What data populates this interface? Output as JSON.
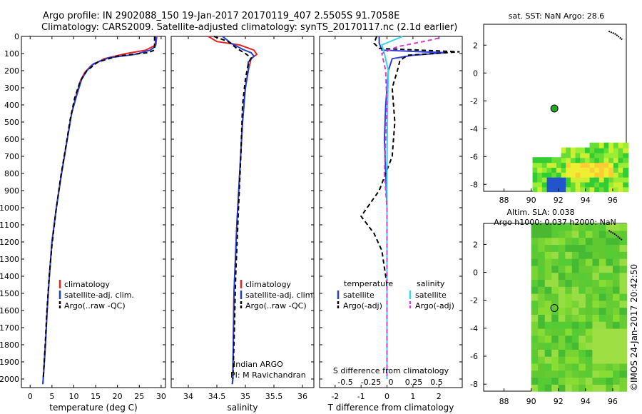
{
  "title_line1": "Argo profile: IN 2902088_150 19-Jan-2017 20170119_407 2.5505S 91.7058E",
  "title_line2": "Climatology: CARS2009. Satellite-adjusted climatology: synTS_20170117.nc (2.1d earlier)",
  "colors": {
    "climatology": "#e8251f",
    "satellite": "#1f3fd6",
    "argo": "#000000",
    "sat_t": "#2b3fe0",
    "sat_s": "#35d6e6",
    "argo_s": "#d23fd2",
    "marker": "#22aa22"
  },
  "depth_ticks": [
    "0",
    "100",
    "200",
    "300",
    "400",
    "500",
    "600",
    "700",
    "800",
    "900",
    "1000",
    "1100",
    "1200",
    "1300",
    "1400",
    "1500",
    "1600",
    "1700",
    "1800",
    "1900",
    "2000"
  ],
  "chart_data": [
    {
      "type": "line",
      "name": "temperature-panel",
      "xlabel": "temperature (deg C)",
      "ylabel": "depth",
      "xlim": [
        -2,
        31
      ],
      "ylim": [
        2050,
        0
      ],
      "xticks": [
        "0",
        "5",
        "10",
        "15",
        "20",
        "25",
        "30"
      ],
      "xtick_values": [
        0,
        5,
        10,
        15,
        20,
        25,
        30
      ],
      "legend": [
        "climatology",
        "satellite-adj. clim.",
        "Argo(..raw -QC)"
      ],
      "series": [
        {
          "name": "climatology",
          "color": "#e8251f",
          "dash": "",
          "points": [
            [
              29.0,
              0
            ],
            [
              28.8,
              50
            ],
            [
              26.5,
              80
            ],
            [
              22,
              100
            ],
            [
              17,
              130
            ],
            [
              14,
              170
            ],
            [
              12.5,
              210
            ],
            [
              11.5,
              260
            ],
            [
              10.5,
              350
            ],
            [
              9.5,
              450
            ],
            [
              8.5,
              600
            ],
            [
              7.2,
              800
            ],
            [
              6.0,
              1000
            ],
            [
              5.0,
              1200
            ],
            [
              4.4,
              1400
            ],
            [
              3.9,
              1600
            ],
            [
              3.5,
              1800
            ],
            [
              3.0,
              2000
            ],
            [
              2.9,
              2030
            ]
          ]
        },
        {
          "name": "satellite-adj. clim.",
          "color": "#1f3fd6",
          "dash": "",
          "points": [
            [
              28.8,
              0
            ],
            [
              28.6,
              60
            ],
            [
              27.5,
              80
            ],
            [
              24,
              105
            ],
            [
              18,
              125
            ],
            [
              14.5,
              160
            ],
            [
              13,
              200
            ],
            [
              11.8,
              250
            ],
            [
              10.6,
              350
            ],
            [
              9.5,
              450
            ],
            [
              8.5,
              600
            ],
            [
              7.2,
              800
            ],
            [
              6.0,
              1000
            ],
            [
              5.0,
              1200
            ],
            [
              4.4,
              1400
            ],
            [
              3.9,
              1600
            ],
            [
              3.5,
              1800
            ],
            [
              3.0,
              2000
            ],
            [
              2.9,
              2030
            ]
          ]
        },
        {
          "name": "Argo(..raw -QC)",
          "color": "#000000",
          "dash": "6,4",
          "points": [
            [
              28.5,
              0
            ],
            [
              28.5,
              80
            ],
            [
              27,
              95
            ],
            [
              20,
              115
            ],
            [
              15.5,
              150
            ],
            [
              13,
              200
            ],
            [
              11.5,
              260
            ],
            [
              10.2,
              360
            ],
            [
              9.2,
              480
            ],
            [
              8.2,
              640
            ],
            [
              7.0,
              820
            ],
            [
              5.9,
              1020
            ],
            [
              5.0,
              1220
            ],
            [
              4.3,
              1420
            ],
            [
              3.8,
              1620
            ],
            [
              3.4,
              1820
            ],
            [
              3.0,
              2000
            ]
          ]
        }
      ]
    },
    {
      "type": "line",
      "name": "salinity-panel",
      "xlabel": "salinity",
      "ylabel": "depth",
      "xlim": [
        33.7,
        36.2
      ],
      "ylim": [
        2050,
        0
      ],
      "xticks": [
        "34",
        "34.5",
        "35",
        "35.5",
        "36"
      ],
      "xtick_values": [
        34,
        34.5,
        35,
        35.5,
        36
      ],
      "legend": [
        "climatology",
        "satellite-adj. clim.",
        "Argo(..raw -QC)"
      ],
      "annotation": [
        "Indian ARGO",
        "PI: M Ravichandran"
      ],
      "series": [
        {
          "name": "climatology",
          "color": "#e8251f",
          "dash": "",
          "points": [
            [
              34.35,
              0
            ],
            [
              34.5,
              30
            ],
            [
              34.9,
              50
            ],
            [
              35.15,
              80
            ],
            [
              35.2,
              105
            ],
            [
              35.1,
              130
            ],
            [
              35.05,
              200
            ],
            [
              35.0,
              300
            ],
            [
              34.95,
              500
            ],
            [
              34.9,
              800
            ],
            [
              34.85,
              1100
            ],
            [
              34.8,
              1500
            ],
            [
              34.78,
              2000
            ],
            [
              34.77,
              2030
            ]
          ]
        },
        {
          "name": "satellite-adj. clim.",
          "color": "#1f3fd6",
          "dash": "",
          "points": [
            [
              34.6,
              0
            ],
            [
              34.75,
              40
            ],
            [
              34.95,
              75
            ],
            [
              35.1,
              95
            ],
            [
              35.15,
              115
            ],
            [
              35.05,
              150
            ],
            [
              35.05,
              200
            ],
            [
              35.0,
              300
            ],
            [
              34.95,
              500
            ],
            [
              34.9,
              800
            ],
            [
              34.85,
              1100
            ],
            [
              34.8,
              1500
            ],
            [
              34.78,
              2000
            ],
            [
              34.77,
              2030
            ]
          ]
        },
        {
          "name": "Argo(..raw -QC)",
          "color": "#000000",
          "dash": "6,4",
          "points": [
            [
              34.45,
              0
            ],
            [
              34.7,
              30
            ],
            [
              34.85,
              70
            ],
            [
              35.0,
              100
            ],
            [
              35.1,
              125
            ],
            [
              35.05,
              160
            ],
            [
              35.0,
              250
            ],
            [
              34.95,
              400
            ],
            [
              34.92,
              700
            ],
            [
              34.88,
              1000
            ],
            [
              34.83,
              1400
            ],
            [
              34.8,
              1800
            ],
            [
              34.78,
              2000
            ]
          ]
        }
      ]
    },
    {
      "type": "line",
      "name": "difference-panel",
      "xlabel": "T difference from climatology",
      "xlabel2": "S difference from climatology",
      "xlim": [
        -2.6,
        2.9
      ],
      "ylim": [
        2050,
        0
      ],
      "xticks": [
        "-2",
        "-1",
        "0",
        "1",
        "2"
      ],
      "xtick_values": [
        -2,
        -1,
        0,
        1,
        2
      ],
      "xticks_top": [
        "-0.5",
        "-0.25",
        "0",
        "0.25",
        "0.5"
      ],
      "legend_t_title": "temperature",
      "legend_s_title": "salinity",
      "legend_t": [
        "satellite",
        "Argo(-adj)"
      ],
      "legend_s": [
        "satellite",
        "Argo(-adj)"
      ],
      "series": [
        {
          "name": "T satellite",
          "color": "#2b3fe0",
          "dash": "",
          "points": [
            [
              -0.3,
              0
            ],
            [
              -0.3,
              40
            ],
            [
              -0.2,
              80
            ],
            [
              1.4,
              90
            ],
            [
              2.3,
              95
            ],
            [
              1.0,
              110
            ],
            [
              0.2,
              130
            ],
            [
              0.05,
              200
            ],
            [
              -0.05,
              400
            ],
            [
              -0.1,
              600
            ],
            [
              -0.05,
              800
            ],
            [
              0,
              1000
            ],
            [
              0,
              2000
            ]
          ]
        },
        {
          "name": "T Argo(-adj)",
          "color": "#000000",
          "dash": "6,4",
          "points": [
            [
              -0.4,
              0
            ],
            [
              -0.5,
              40
            ],
            [
              -0.3,
              70
            ],
            [
              2.8,
              90
            ],
            [
              0.8,
              110
            ],
            [
              0.5,
              140
            ],
            [
              0.4,
              200
            ],
            [
              0.2,
              300
            ],
            [
              0.3,
              500
            ],
            [
              0.2,
              700
            ],
            [
              -0.3,
              900
            ],
            [
              -1.0,
              1050
            ],
            [
              -0.5,
              1150
            ],
            [
              -0.2,
              1250
            ],
            [
              0,
              1450
            ],
            [
              0,
              2000
            ]
          ]
        },
        {
          "name": "S satellite",
          "color": "#35d6e6",
          "dash": "",
          "points": [
            [
              0.6,
              0
            ],
            [
              -0.2,
              50
            ],
            [
              -0.1,
              100
            ],
            [
              0.05,
              200
            ],
            [
              0.02,
              400
            ],
            [
              0,
              800
            ],
            [
              0,
              2000
            ]
          ]
        },
        {
          "name": "S Argo(-adj)",
          "color": "#d23fd2",
          "dash": "6,4",
          "points": [
            [
              2.0,
              10
            ],
            [
              1.4,
              30
            ],
            [
              0.4,
              60
            ],
            [
              -0.2,
              100
            ],
            [
              -0.05,
              200
            ],
            [
              0,
              400
            ],
            [
              -0.1,
              800
            ],
            [
              -0.05,
              900
            ],
            [
              0,
              1000
            ],
            [
              0,
              2000
            ]
          ]
        }
      ]
    },
    {
      "type": "heatmap",
      "name": "sst-map",
      "title": "sat. SST: NaN Argo: 28.6",
      "xlim": [
        86.5,
        97
      ],
      "ylim": [
        -8.5,
        3.5
      ],
      "xticks": [
        "88",
        "90",
        "92",
        "94",
        "96"
      ],
      "xtick_values": [
        88,
        90,
        92,
        94,
        96
      ],
      "yticks": [
        "2",
        "0",
        "-2",
        "-4",
        "-6",
        "-8"
      ],
      "ytick_values": [
        2,
        0,
        -2,
        -4,
        -6,
        -8
      ],
      "argo_position": [
        91.7058,
        -2.5505
      ]
    },
    {
      "type": "heatmap",
      "name": "sla-map",
      "title": "Altim. SLA: 0.038",
      "subtitle": "Argo h1000: 0.037 h2000: NaN",
      "xlim": [
        86.5,
        97
      ],
      "ylim": [
        -8.5,
        3.5
      ],
      "xticks": [
        "88",
        "90",
        "92",
        "94",
        "96"
      ],
      "xtick_values": [
        88,
        90,
        92,
        94,
        96
      ],
      "yticks": [
        "2",
        "0",
        "-2",
        "-4",
        "-6",
        "-8"
      ],
      "ytick_values": [
        2,
        0,
        -2,
        -4,
        -6,
        -8
      ],
      "argo_position": [
        91.7058,
        -2.5505
      ]
    }
  ],
  "footer_credit": "©IMOS 24-Jan-2017 20:42:50"
}
